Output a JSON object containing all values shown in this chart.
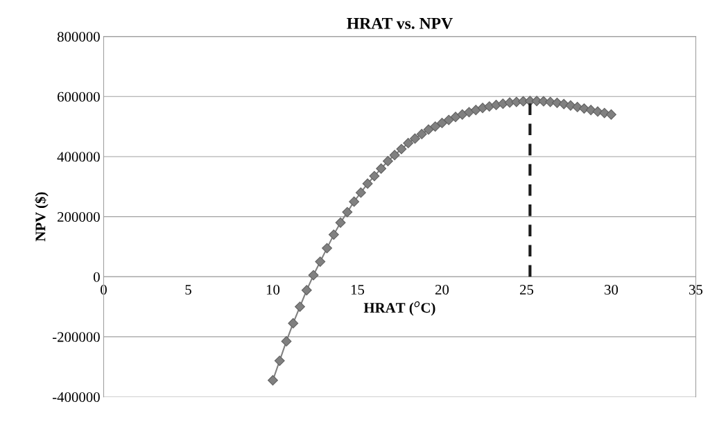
{
  "chart_data": {
    "type": "line",
    "title": "HRAT vs. NPV",
    "xlabel": "HRAT ($^{o}$C)",
    "ylabel": "NPV ($)",
    "xlim": [
      0,
      35
    ],
    "xticks": [
      0,
      5,
      10,
      15,
      20,
      25,
      30,
      35
    ],
    "ylim": [
      -400000,
      800000
    ],
    "yticks": [
      -400000,
      -200000,
      0,
      200000,
      400000,
      600000,
      800000
    ],
    "grid": "y",
    "marker": "diamond",
    "line_style": "solid",
    "series": [
      {
        "color": "#808080",
        "x": [
          10,
          10.4,
          10.8,
          11.2,
          11.6,
          12,
          12.4,
          12.8,
          13.2,
          13.6,
          14,
          14.4,
          14.8,
          15.2,
          15.6,
          16,
          16.4,
          16.8,
          17.2,
          17.6,
          18,
          18.4,
          18.8,
          19.2,
          19.6,
          20,
          20.4,
          20.8,
          21.2,
          21.6,
          22,
          22.4,
          22.8,
          23.2,
          23.6,
          24,
          24.4,
          24.8,
          25.2,
          25.6,
          26,
          26.4,
          26.8,
          27.2,
          27.6,
          28,
          28.4,
          28.8,
          29.2,
          29.6,
          30
        ],
        "values": [
          -345000,
          -280000,
          -215000,
          -155000,
          -100000,
          -45000,
          5000,
          50000,
          95000,
          140000,
          180000,
          215000,
          250000,
          280000,
          310000,
          335000,
          360000,
          385000,
          405000,
          425000,
          445000,
          460000,
          475000,
          490000,
          500000,
          512000,
          522000,
          532000,
          540000,
          548000,
          555000,
          562000,
          567000,
          572000,
          576000,
          580000,
          582000,
          584000,
          585000,
          585000,
          584000,
          582000,
          579000,
          575000,
          570000,
          565000,
          560000,
          555000,
          550000,
          545000,
          540000
        ]
      },
      {
        "color": "#1a1a1a",
        "type": "line",
        "marker": "none",
        "line_style": "dashed",
        "x": [
          25.2,
          25.2
        ],
        "values": [
          0,
          585000
        ]
      }
    ]
  }
}
